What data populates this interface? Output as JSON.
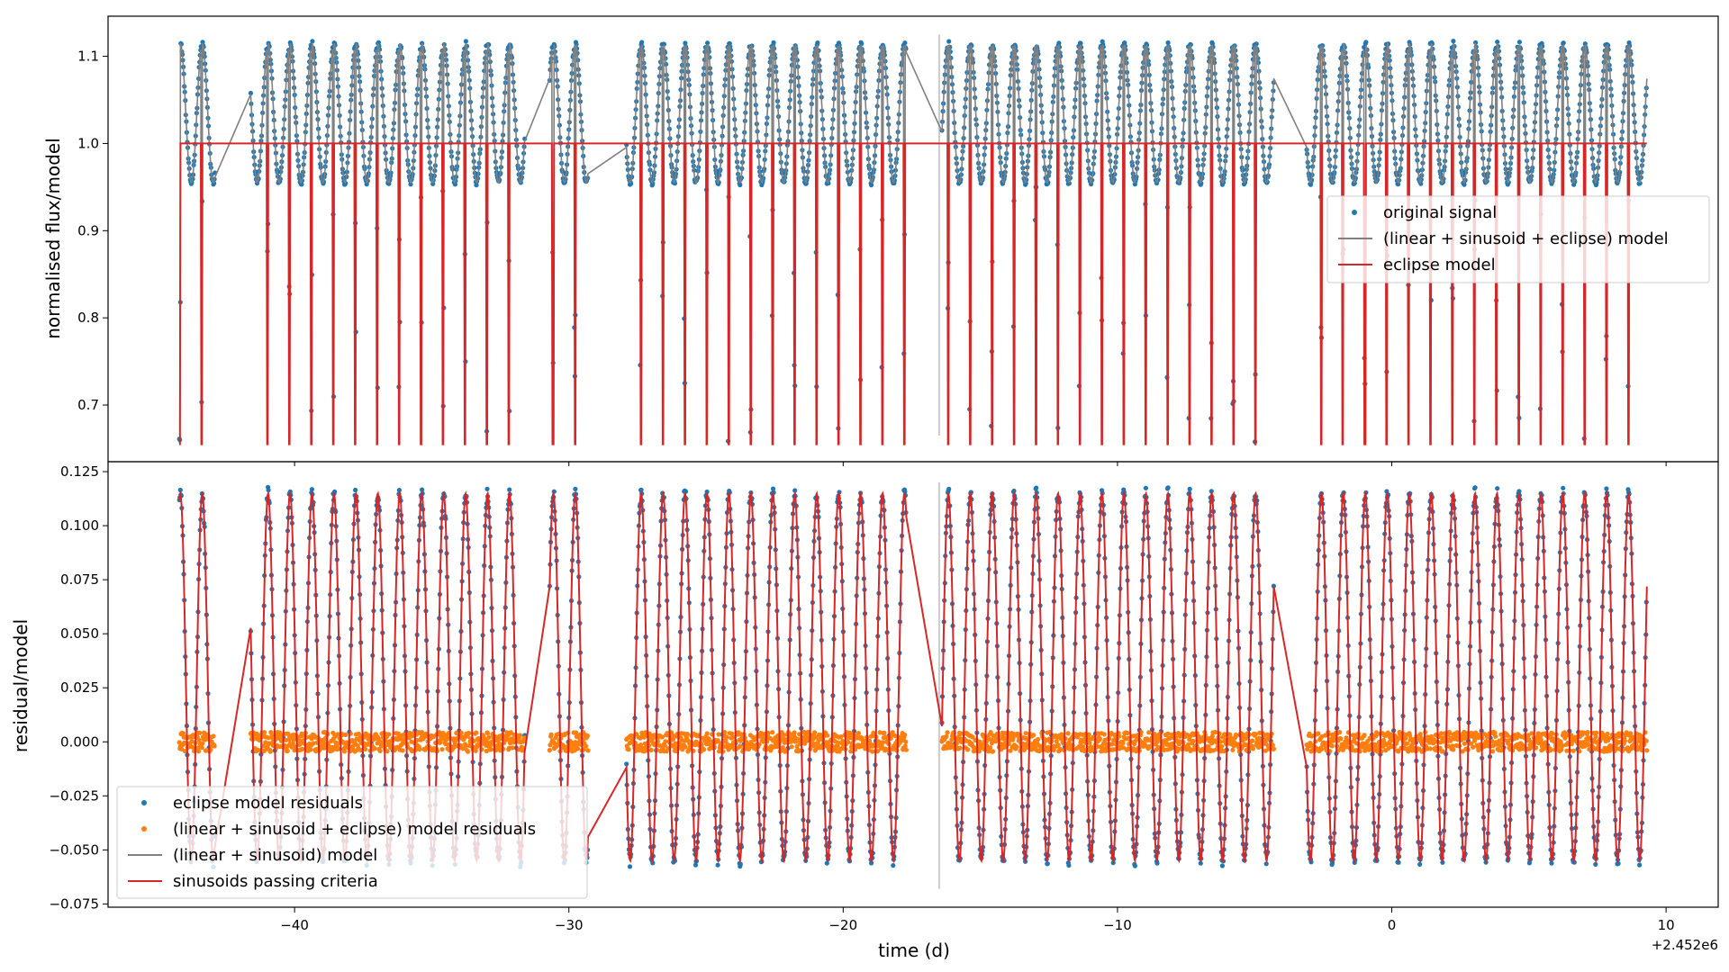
{
  "figure": {
    "xlabel": "time (d)",
    "x_offset_label": "+2.452e6"
  },
  "colors": {
    "original_signal": "#1f77b4",
    "full_model": "#808080",
    "eclipse_model": "#d62728",
    "residuals_full": "#ff7f0e",
    "vertical_marker": "#cccccc"
  },
  "chart_data": [
    {
      "type": "scatter",
      "panel": "top",
      "ylabel": "normalised flux/model",
      "xlim": [
        -46.8,
        11.9
      ],
      "ylim": [
        0.635,
        1.146
      ],
      "x_ticks": [
        -40,
        -30,
        -20,
        -10,
        0,
        10
      ],
      "x_tick_labels": [
        "−40",
        "−30",
        "−20",
        "−10",
        "0",
        "10"
      ],
      "y_ticks": [
        0.7,
        0.8,
        0.9,
        1.0,
        1.1
      ],
      "y_tick_labels": [
        "0.7",
        "0.8",
        "0.9",
        "1.0",
        "1.1"
      ],
      "grid": false,
      "legend_position": "center-right",
      "segments": [
        [
          -44.2,
          -42.9
        ],
        [
          -41.6,
          -31.6
        ],
        [
          -30.7,
          -29.3
        ],
        [
          -27.9,
          -17.7
        ],
        [
          -16.4,
          -4.3
        ],
        [
          -3.1,
          9.3
        ]
      ],
      "eclipse_period_days": 0.8,
      "eclipse_depth_min": 0.655,
      "vertical_marker_x": -16.5,
      "series": [
        {
          "name": "original signal",
          "kind": "scatter",
          "baseline": 0.955,
          "amplitude_peak": 1.115,
          "eclipse_min": 0.655
        },
        {
          "name": "(linear + sinusoid + eclipse) model",
          "kind": "line"
        },
        {
          "name": "eclipse model",
          "kind": "line",
          "baseline": 1.0,
          "eclipse_min": 0.655
        }
      ],
      "legend": [
        "original signal",
        "(linear + sinusoid + eclipse) model",
        "eclipse model"
      ]
    },
    {
      "type": "scatter",
      "panel": "bottom",
      "ylabel": "residual/model",
      "xlim": [
        -46.8,
        11.9
      ],
      "ylim": [
        -0.0765,
        0.1296
      ],
      "x_ticks": [
        -40,
        -30,
        -20,
        -10,
        0,
        10
      ],
      "x_tick_labels": [
        "−40",
        "−30",
        "−20",
        "−10",
        "0",
        "10"
      ],
      "y_ticks": [
        -0.075,
        -0.05,
        -0.025,
        0.0,
        0.025,
        0.05,
        0.075,
        0.1,
        0.125
      ],
      "y_tick_labels": [
        "−0.075",
        "−0.050",
        "−0.025",
        "0.000",
        "0.025",
        "0.050",
        "0.075",
        "0.100",
        "0.125"
      ],
      "grid": false,
      "legend_position": "lower-left",
      "vertical_marker_x": -16.5,
      "series": [
        {
          "name": "eclipse model residuals",
          "kind": "scatter",
          "range": [
            -0.06,
            0.12
          ]
        },
        {
          "name": "(linear + sinusoid + eclipse) model residuals",
          "kind": "scatter",
          "range": [
            -0.005,
            0.005
          ]
        },
        {
          "name": "(linear + sinusoid) model",
          "kind": "line"
        },
        {
          "name": "sinusoids passing criteria",
          "kind": "line",
          "range": [
            -0.055,
            0.115
          ]
        }
      ],
      "legend": [
        "eclipse model residuals",
        "(linear + sinusoid + eclipse) model residuals",
        "(linear + sinusoid) model",
        "sinusoids passing criteria"
      ]
    }
  ]
}
